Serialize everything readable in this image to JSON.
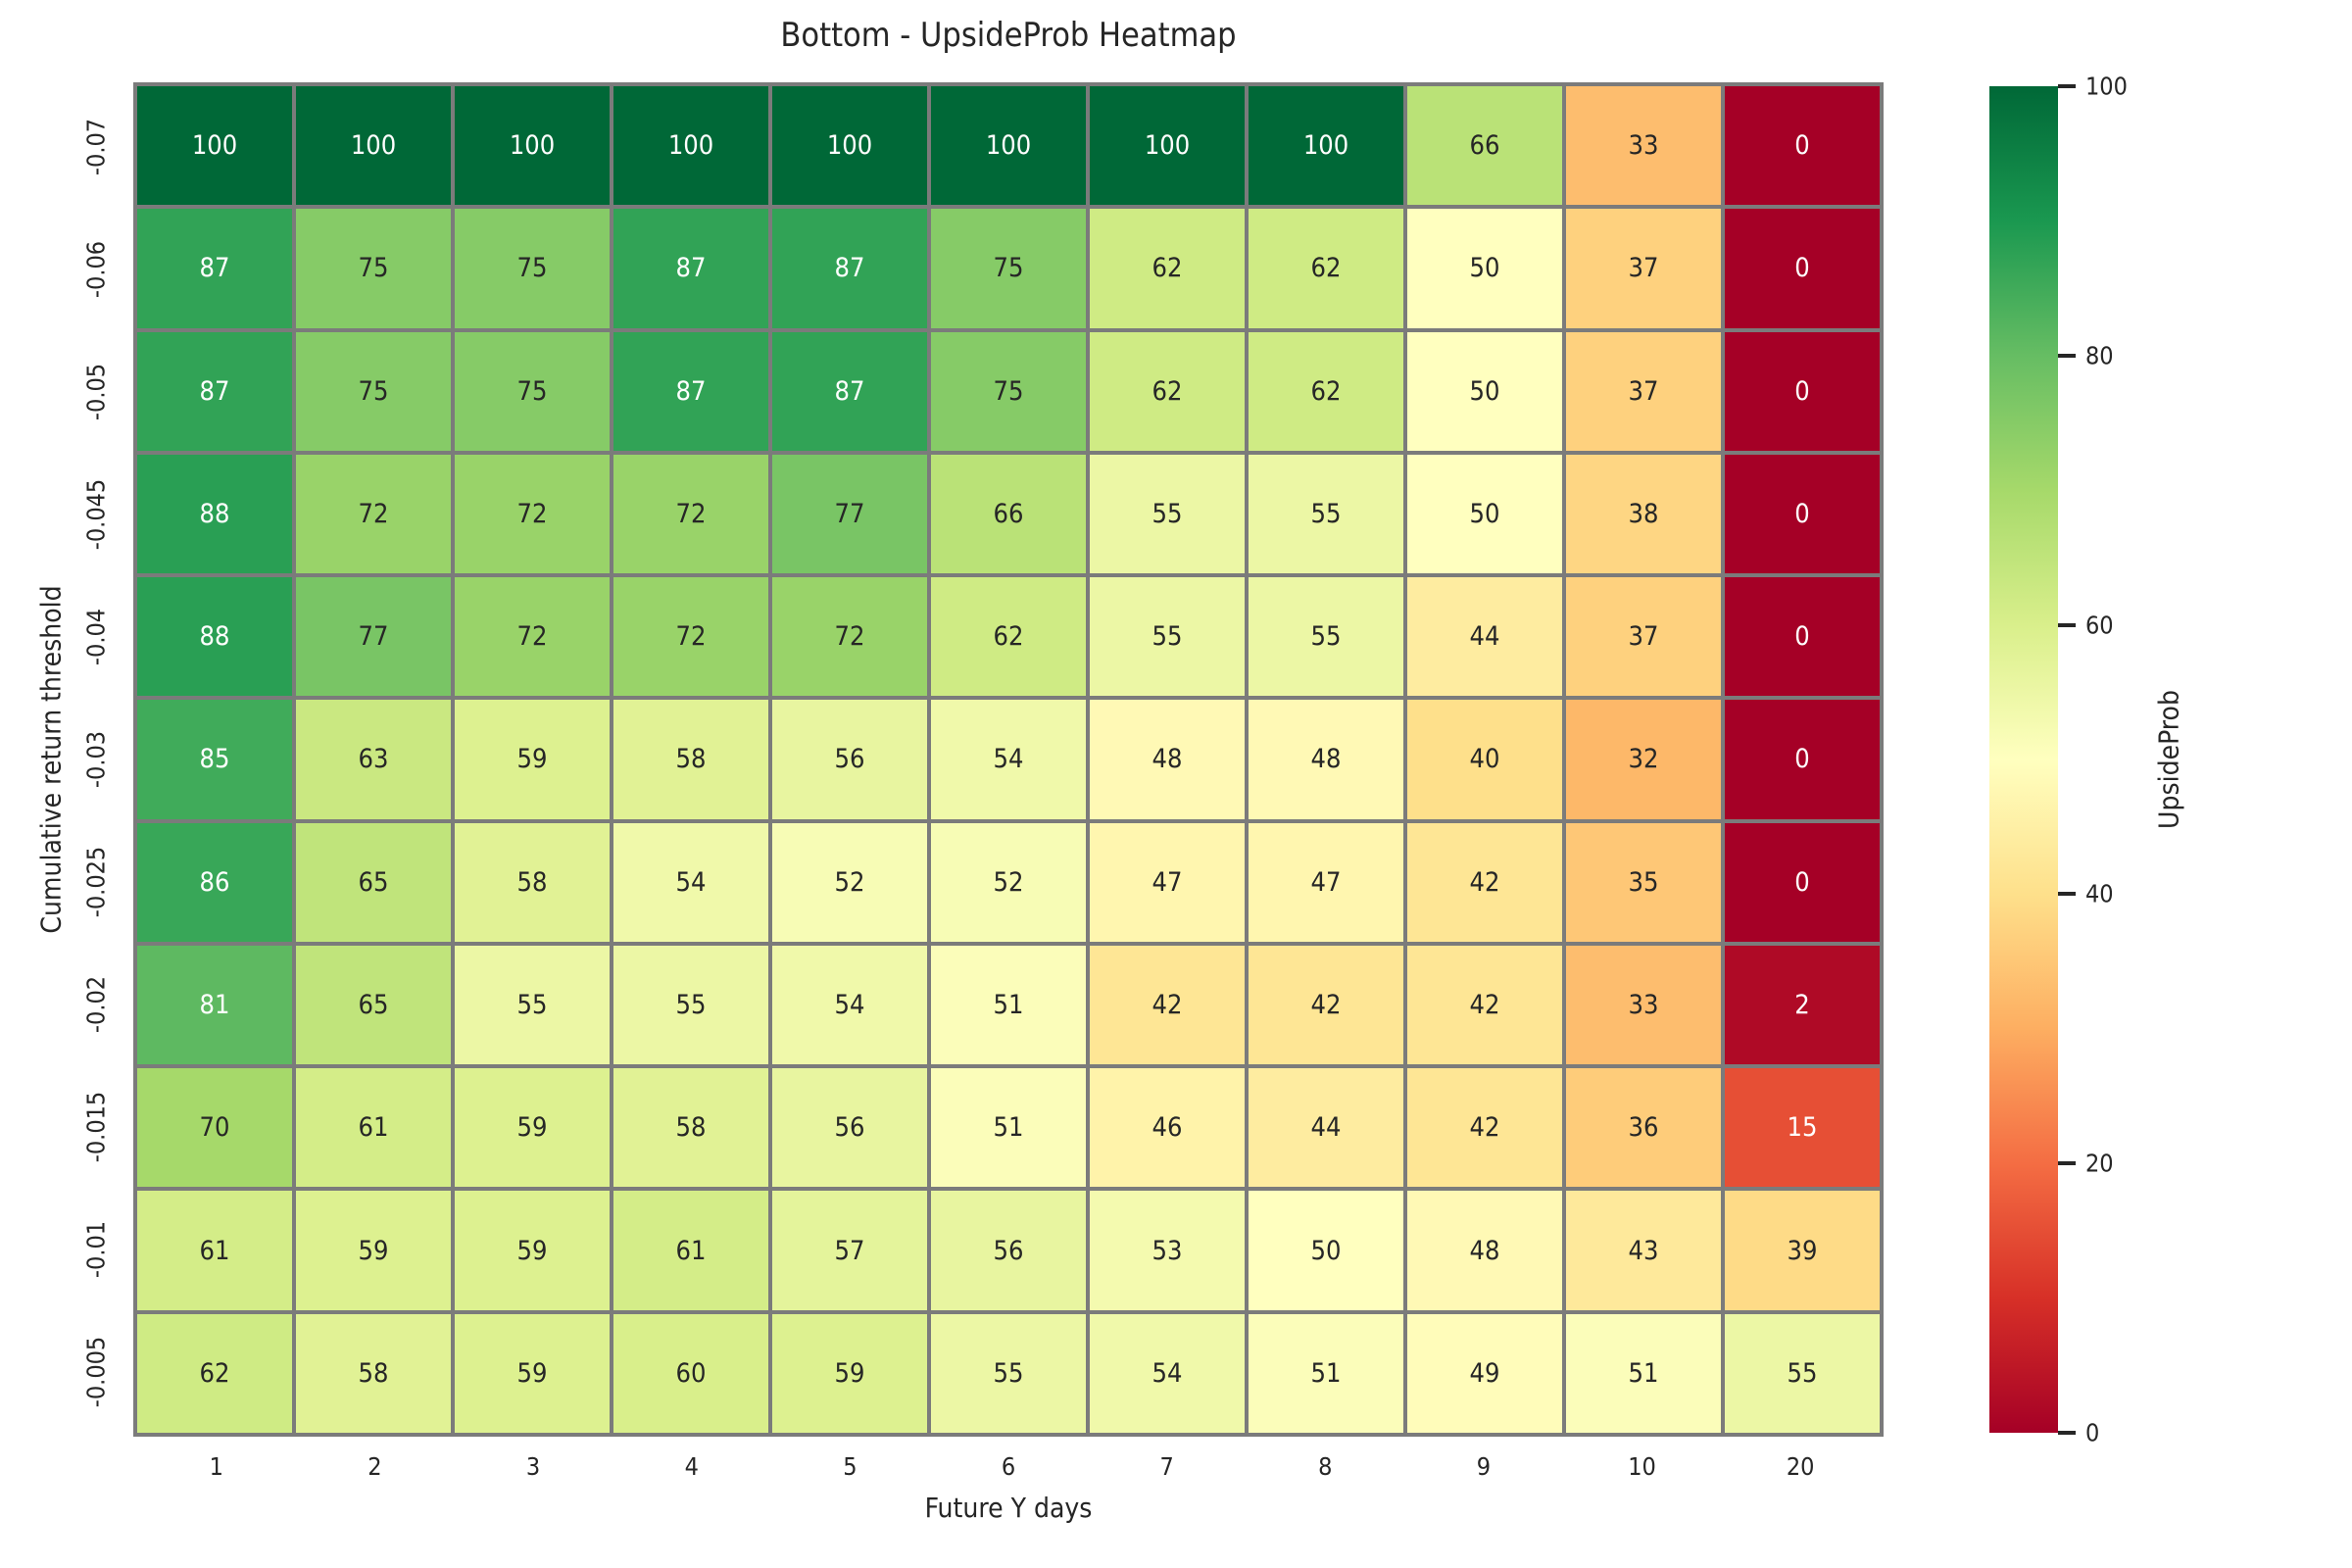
{
  "chart_data": {
    "type": "heatmap",
    "title": "Bottom - UpsideProb Heatmap",
    "xlabel": "Future Y days",
    "ylabel": "Cumulative return threshold",
    "x_tick_labels": [
      "1",
      "2",
      "3",
      "4",
      "5",
      "6",
      "7",
      "8",
      "9",
      "10",
      "20"
    ],
    "y_tick_labels": [
      "-0.07",
      "-0.06",
      "-0.05",
      "-0.045",
      "-0.04",
      "-0.03",
      "-0.025",
      "-0.02",
      "-0.015",
      "-0.01",
      "-0.005"
    ],
    "values": [
      [
        100,
        100,
        100,
        100,
        100,
        100,
        100,
        100,
        66,
        33,
        0
      ],
      [
        87,
        75,
        75,
        87,
        87,
        75,
        62,
        62,
        50,
        37,
        0
      ],
      [
        87,
        75,
        75,
        87,
        87,
        75,
        62,
        62,
        50,
        37,
        0
      ],
      [
        88,
        72,
        72,
        72,
        77,
        66,
        55,
        55,
        50,
        38,
        0
      ],
      [
        88,
        77,
        72,
        72,
        72,
        62,
        55,
        55,
        44,
        37,
        0
      ],
      [
        85,
        63,
        59,
        58,
        56,
        54,
        48,
        48,
        40,
        32,
        0
      ],
      [
        86,
        65,
        58,
        54,
        52,
        52,
        47,
        47,
        42,
        35,
        0
      ],
      [
        81,
        65,
        55,
        55,
        54,
        51,
        42,
        42,
        42,
        33,
        2
      ],
      [
        70,
        61,
        59,
        58,
        56,
        51,
        46,
        44,
        42,
        36,
        15
      ],
      [
        61,
        59,
        59,
        61,
        57,
        56,
        53,
        50,
        48,
        43,
        39
      ],
      [
        62,
        58,
        59,
        60,
        59,
        55,
        54,
        51,
        49,
        51,
        55
      ]
    ],
    "vmin": 0,
    "vmax": 100,
    "colormap": "RdYlGn",
    "colormap_stops": [
      "#a50026",
      "#d73027",
      "#f46d43",
      "#fdae61",
      "#fee08b",
      "#ffffbf",
      "#d9ef8b",
      "#a6d96a",
      "#66bd63",
      "#1a9850",
      "#006837"
    ],
    "grid": {
      "line_color": "#7b7b7b",
      "line_width": 4
    },
    "annotation_colors": {
      "dark": "#262626",
      "light": "#ffffff"
    },
    "legend_position": "right",
    "colorbar": {
      "label": "UpsideProb",
      "tick_values": [
        0,
        20,
        40,
        60,
        80,
        100
      ],
      "tick_labels": [
        "0",
        "20",
        "40",
        "60",
        "80",
        "100"
      ]
    }
  }
}
